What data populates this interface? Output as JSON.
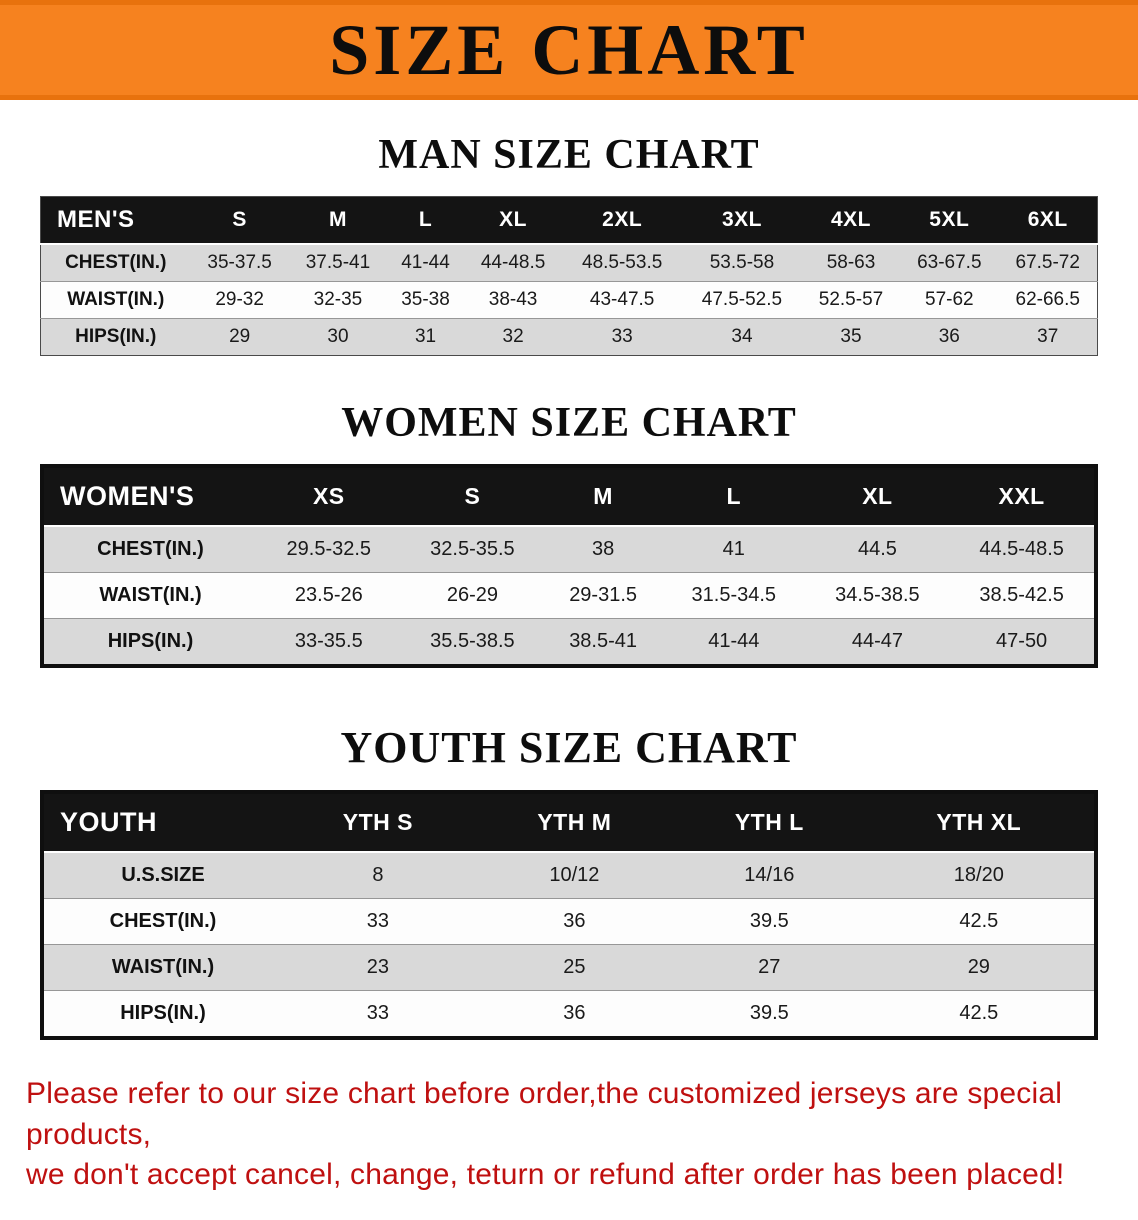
{
  "banner": {
    "title": "SIZE CHART",
    "bg_color": "#F6821F",
    "text_color": "#0D0D0D"
  },
  "sections": [
    {
      "heading": "MAN SIZE CHART",
      "table": {
        "header": [
          "MEN'S",
          "S",
          "M",
          "L",
          "XL",
          "2XL",
          "3XL",
          "4XL",
          "5XL",
          "6XL"
        ],
        "rows": [
          [
            "CHEST(IN.)",
            "35-37.5",
            "37.5-41",
            "41-44",
            "44-48.5",
            "48.5-53.5",
            "53.5-58",
            "58-63",
            "63-67.5",
            "67.5-72"
          ],
          [
            "WAIST(IN.)",
            "29-32",
            "32-35",
            "35-38",
            "38-43",
            "43-47.5",
            "47.5-52.5",
            "52.5-57",
            "57-62",
            "62-66.5"
          ],
          [
            "HIPS(IN.)",
            "29",
            "30",
            "31",
            "32",
            "33",
            "34",
            "35",
            "36",
            "37"
          ]
        ]
      }
    },
    {
      "heading": "WOMEN SIZE CHART",
      "table": {
        "header": [
          "WOMEN'S",
          "XS",
          "S",
          "M",
          "L",
          "XL",
          "XXL"
        ],
        "rows": [
          [
            "CHEST(IN.)",
            "29.5-32.5",
            "32.5-35.5",
            "38",
            "41",
            "44.5",
            "44.5-48.5"
          ],
          [
            "WAIST(IN.)",
            "23.5-26",
            "26-29",
            "29-31.5",
            "31.5-34.5",
            "34.5-38.5",
            "38.5-42.5"
          ],
          [
            "HIPS(IN.)",
            "33-35.5",
            "35.5-38.5",
            "38.5-41",
            "41-44",
            "44-47",
            "47-50"
          ]
        ]
      }
    },
    {
      "heading": "YOUTH SIZE CHART",
      "table": {
        "header": [
          "YOUTH",
          "YTH S",
          "YTH M",
          "YTH L",
          "YTH XL"
        ],
        "rows": [
          [
            "U.S.SIZE",
            "8",
            "10/12",
            "14/16",
            "18/20"
          ],
          [
            "CHEST(IN.)",
            "33",
            "36",
            "39.5",
            "42.5"
          ],
          [
            "WAIST(IN.)",
            "23",
            "25",
            "27",
            "29"
          ],
          [
            "HIPS(IN.)",
            "33",
            "36",
            "39.5",
            "42.5"
          ]
        ]
      }
    }
  ],
  "footer": {
    "line1": "Please refer to our size chart before order,the customized jerseys are special products,",
    "line2": "we don't accept cancel, change, teturn or refund after order has been placed!",
    "color": "#BF1010"
  }
}
